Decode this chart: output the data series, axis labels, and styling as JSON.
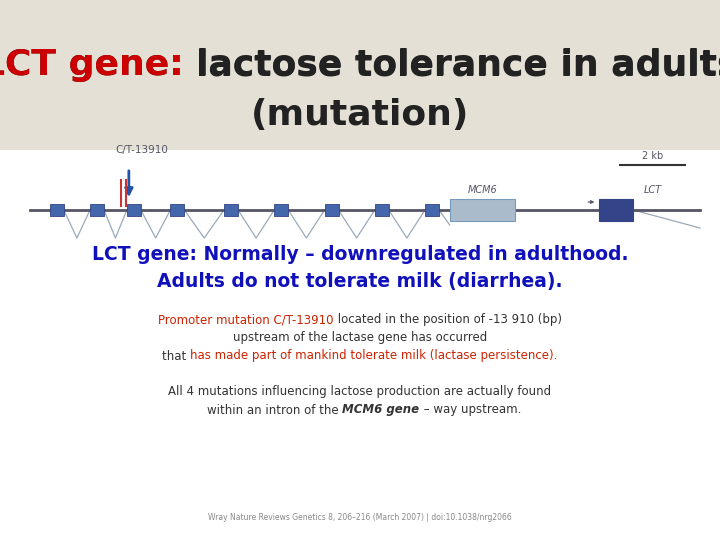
{
  "title_part1": "LCT gene: ",
  "title_part2": "lactose tolerance in adults",
  "title_line2": "(mutation)",
  "title_color1": "#cc0000",
  "title_color2": "#222222",
  "title_bg": "#e5e0d5",
  "bg_color": "#ffffff",
  "subtitle_line1": "LCT gene: Normally – downregulated in adulthood.",
  "subtitle_line2": "Adults do not tolerate milk (diarrhea).",
  "subtitle_color": "#1111bb",
  "para_color": "#333333",
  "red_color": "#cc2200",
  "citation": "Wray Nature Reviews Genetics 8, 206–216 (March 2007) | doi:10.1038/nrg2066",
  "ct_label": "C/T-13910",
  "scale_label": "2 kb",
  "mcm6_label": "MCM6",
  "lct_label": "LCT",
  "gene_line_color": "#555566",
  "exon_color": "#4466aa",
  "mcm6_color": "#aabbcc",
  "lct_box_color": "#334488",
  "arrow_color": "#2255aa",
  "red_line_color": "#cc3333",
  "vshape_color": "#99aabb"
}
